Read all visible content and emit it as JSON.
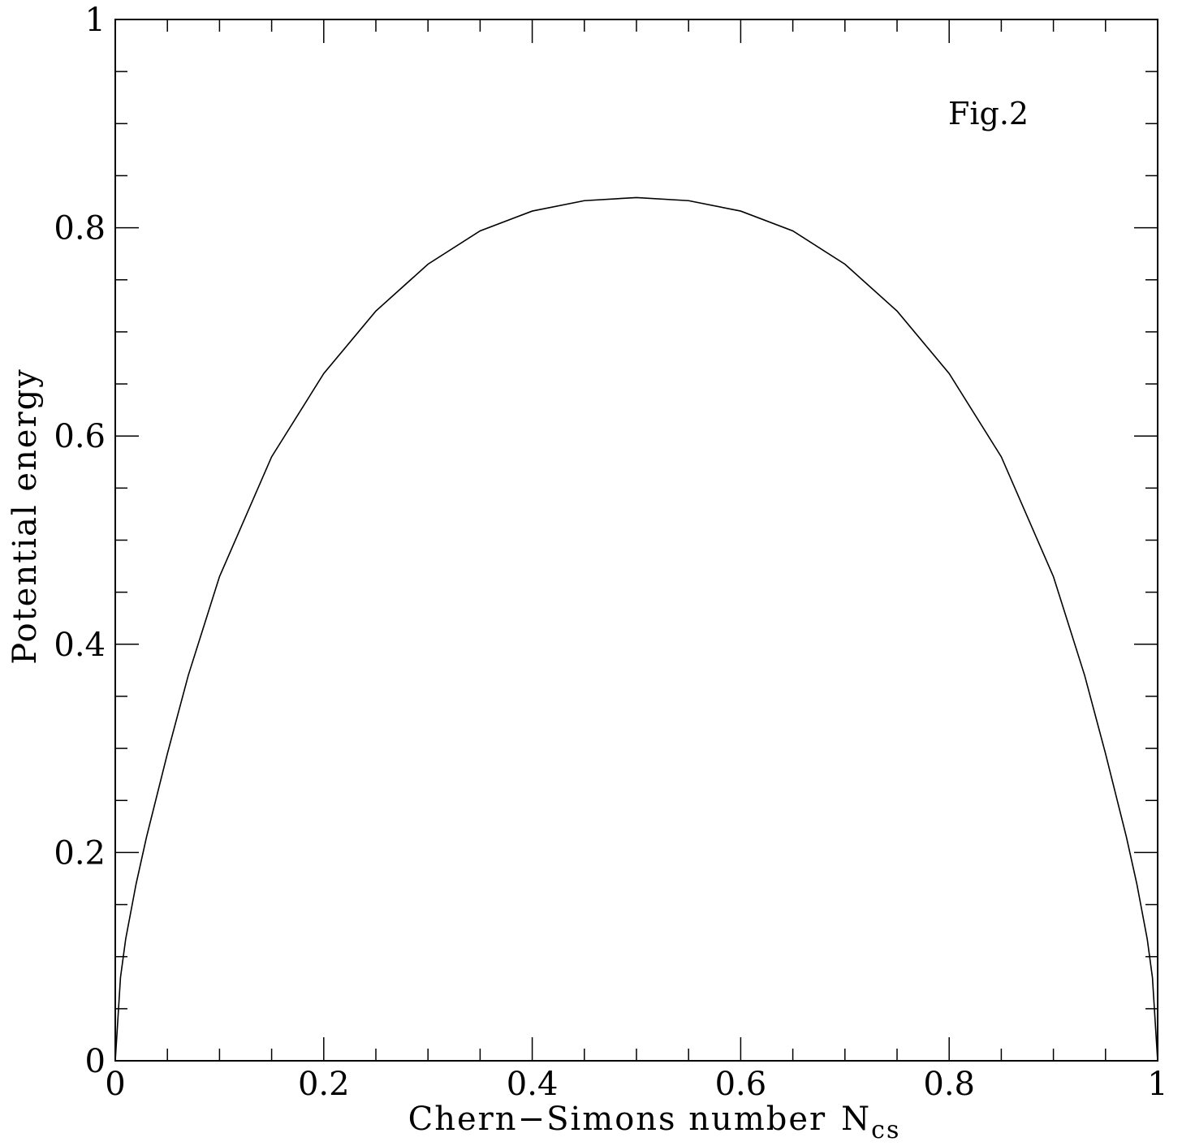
{
  "chart_data": {
    "type": "line",
    "xlabel": "Chern−Simons number",
    "xlabel_symbol": "N",
    "xlabel_subscript": "cs",
    "ylabel": "Potential energy",
    "annotation": "Fig.2",
    "xlim": [
      0,
      1
    ],
    "ylim": [
      0,
      1
    ],
    "x_ticks": [
      0,
      0.2,
      0.4,
      0.6,
      0.8,
      1
    ],
    "x_tick_labels": [
      "0",
      "0.2",
      "0.4",
      "0.6",
      "0.8",
      "1"
    ],
    "y_ticks": [
      0,
      0.2,
      0.4,
      0.6,
      0.8,
      1
    ],
    "y_tick_labels": [
      "0",
      "0.2",
      "0.4",
      "0.6",
      "0.8",
      "1"
    ],
    "x_minor_step": 0.05,
    "y_minor_step": 0.05,
    "grid": false,
    "legend": "none",
    "series": [
      {
        "x": [
          0,
          0.005,
          0.01,
          0.02,
          0.03,
          0.05,
          0.07,
          0.1,
          0.15,
          0.2,
          0.25,
          0.3,
          0.35,
          0.4,
          0.45,
          0.5,
          0.55,
          0.6,
          0.65,
          0.7,
          0.75,
          0.8,
          0.85,
          0.9,
          0.93,
          0.95,
          0.97,
          0.98,
          0.99,
          0.995,
          1
        ],
        "y": [
          0,
          0.08,
          0.117,
          0.17,
          0.215,
          0.295,
          0.37,
          0.465,
          0.58,
          0.66,
          0.72,
          0.765,
          0.797,
          0.816,
          0.826,
          0.829,
          0.826,
          0.816,
          0.797,
          0.765,
          0.72,
          0.66,
          0.58,
          0.465,
          0.37,
          0.295,
          0.215,
          0.17,
          0.117,
          0.08,
          0
        ],
        "color": "#000000"
      }
    ]
  }
}
